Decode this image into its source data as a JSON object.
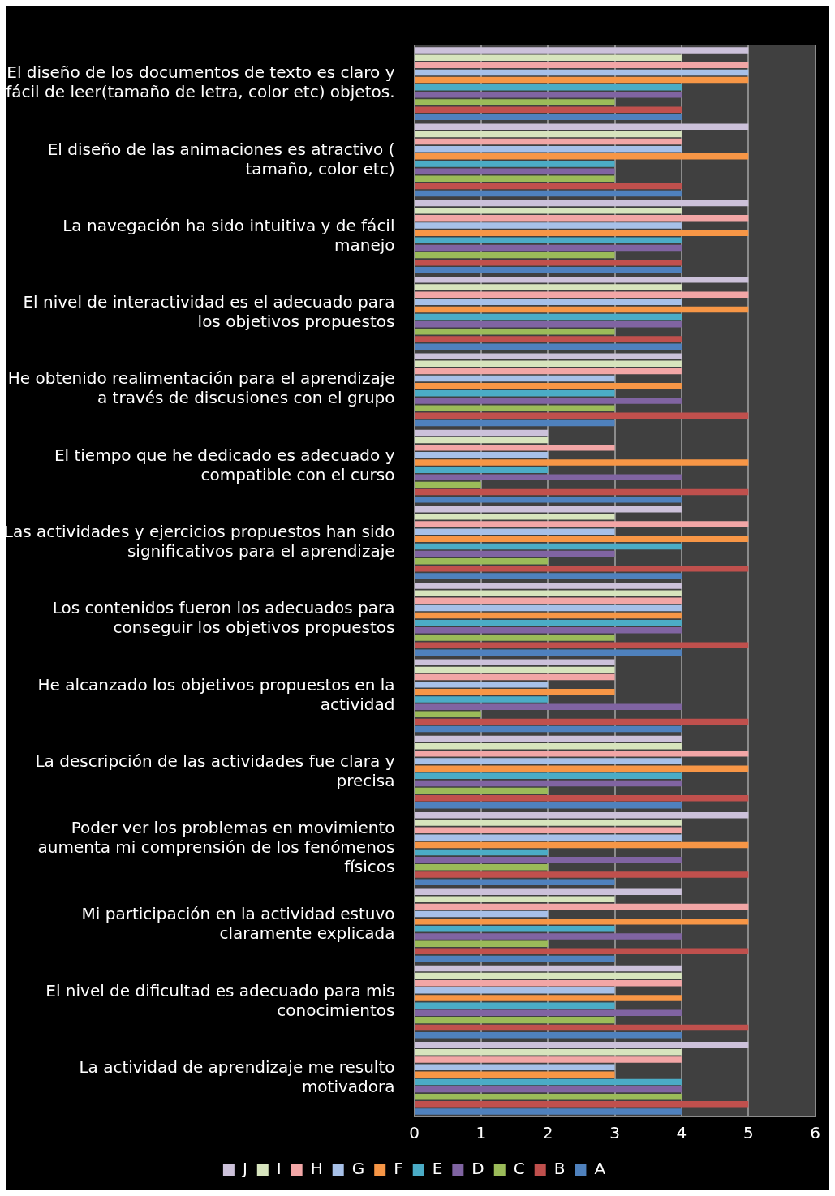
{
  "chart_data": {
    "type": "bar",
    "orientation": "horizontal",
    "categories": [
      "El diseño de los documentos de texto es claro y fácil de leer(tamaño de letra, color etc) objetos.",
      "El diseño de las animaciones es atractivo ( tamaño, color etc)",
      "La navegación ha sido intuitiva y de fácil manejo",
      "El nivel de interactividad es el adecuado para los objetivos propuestos",
      "He obtenido realimentación para el aprendizaje a través de discusiones con el grupo",
      "El tiempo que he dedicado es adecuado y compatible con el curso",
      "Las actividades y ejercicios propuestos han sido significativos para el aprendizaje",
      "Los contenidos fueron los adecuados para conseguir los objetivos propuestos",
      "He alcanzado los objetivos propuestos en la actividad",
      "La descripción de las actividades fue clara y precisa",
      "Poder ver los problemas en movimiento aumenta mi comprensión de los fenómenos físicos",
      "Mi participación en la actividad estuvo claramente explicada",
      "El nivel de dificultad es adecuado para mis conocimientos",
      "La actividad de aprendizaje me resulto motivadora"
    ],
    "series": [
      {
        "name": "J",
        "color": "#ccc1da",
        "values": [
          5,
          5,
          5,
          5,
          4,
          2,
          4,
          4,
          3,
          4,
          5,
          4,
          4,
          5
        ]
      },
      {
        "name": "I",
        "color": "#d7e4bd",
        "values": [
          4,
          4,
          4,
          4,
          4,
          2,
          3,
          4,
          3,
          4,
          4,
          3,
          4,
          4
        ]
      },
      {
        "name": "H",
        "color": "#f2a6a6",
        "values": [
          5,
          4,
          5,
          5,
          4,
          3,
          5,
          4,
          3,
          5,
          4,
          5,
          4,
          4
        ]
      },
      {
        "name": "G",
        "color": "#a7c0e8",
        "values": [
          5,
          4,
          4,
          4,
          3,
          2,
          3,
          4,
          2,
          4,
          4,
          2,
          3,
          3
        ]
      },
      {
        "name": "F",
        "color": "#f79646",
        "values": [
          5,
          5,
          5,
          5,
          4,
          5,
          5,
          4,
          3,
          5,
          5,
          5,
          4,
          3
        ]
      },
      {
        "name": "E",
        "color": "#4bacc6",
        "values": [
          4,
          3,
          4,
          4,
          3,
          2,
          4,
          4,
          2,
          4,
          2,
          3,
          3,
          4
        ]
      },
      {
        "name": "D",
        "color": "#8064a2",
        "values": [
          4,
          3,
          4,
          4,
          4,
          4,
          3,
          4,
          4,
          4,
          4,
          4,
          4,
          4
        ]
      },
      {
        "name": "C",
        "color": "#9bbb59",
        "values": [
          3,
          3,
          3,
          3,
          3,
          1,
          2,
          3,
          1,
          2,
          2,
          2,
          3,
          4
        ]
      },
      {
        "name": "B",
        "color": "#c0504d",
        "values": [
          4,
          4,
          4,
          4,
          5,
          5,
          5,
          5,
          5,
          5,
          5,
          5,
          5,
          5
        ]
      },
      {
        "name": "A",
        "color": "#4f81bd",
        "values": [
          4,
          4,
          4,
          4,
          3,
          4,
          4,
          4,
          4,
          4,
          3,
          3,
          4,
          4
        ]
      }
    ],
    "xlim": [
      0,
      6
    ],
    "xticks": [
      0,
      1,
      2,
      3,
      4,
      5,
      6
    ],
    "grid": "x",
    "legend": "bottom"
  }
}
